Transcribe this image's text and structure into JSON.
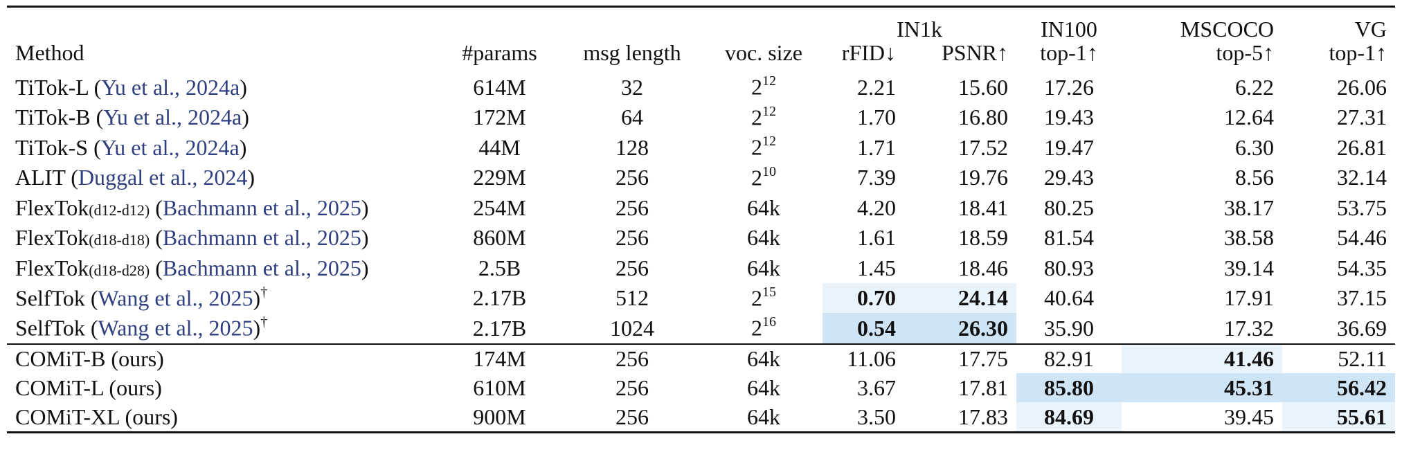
{
  "columns": {
    "group_in1k": "IN1k",
    "method": "Method",
    "params": "#params",
    "msg_length": "msg length",
    "voc_size": "voc. size",
    "rfid": "rFID↓",
    "psnr": "PSNR↑",
    "in100_top": "IN100",
    "in100_sub": "top-1↑",
    "mscoco_top": "MSCOCO",
    "mscoco_sub": "top-5↑",
    "vg_top": "VG",
    "vg_sub": "top-1↑"
  },
  "rows": [
    {
      "method": "TiTok-L",
      "variant": "",
      "cite": "Yu et al., 2024a",
      "dagger": "",
      "params": "614M",
      "msg": "32",
      "voc": "2",
      "voc_exp": "12",
      "rfid": "2.21",
      "psnr": "15.60",
      "in100": "17.26",
      "mscoco": "6.22",
      "vg": "26.06"
    },
    {
      "method": "TiTok-B",
      "variant": "",
      "cite": "Yu et al., 2024a",
      "dagger": "",
      "params": "172M",
      "msg": "64",
      "voc": "2",
      "voc_exp": "12",
      "rfid": "1.70",
      "psnr": "16.80",
      "in100": "19.43",
      "mscoco": "12.64",
      "vg": "27.31"
    },
    {
      "method": "TiTok-S",
      "variant": "",
      "cite": "Yu et al., 2024a",
      "dagger": "",
      "params": "44M",
      "msg": "128",
      "voc": "2",
      "voc_exp": "12",
      "rfid": "1.71",
      "psnr": "17.52",
      "in100": "19.47",
      "mscoco": "6.30",
      "vg": "26.81"
    },
    {
      "method": "ALIT",
      "variant": "",
      "cite": "Duggal et al., 2024",
      "dagger": "",
      "params": "229M",
      "msg": "256",
      "voc": "2",
      "voc_exp": "10",
      "rfid": "7.39",
      "psnr": "19.76",
      "in100": "29.43",
      "mscoco": "8.56",
      "vg": "32.14"
    },
    {
      "method": "FlexTok",
      "variant": "(d12-d12)",
      "cite": "Bachmann et al., 2025",
      "dagger": "",
      "params": "254M",
      "msg": "256",
      "voc": "64k",
      "voc_exp": "",
      "rfid": "4.20",
      "psnr": "18.41",
      "in100": "80.25",
      "mscoco": "38.17",
      "vg": "53.75"
    },
    {
      "method": "FlexTok",
      "variant": "(d18-d18)",
      "cite": "Bachmann et al., 2025",
      "dagger": "",
      "params": "860M",
      "msg": "256",
      "voc": "64k",
      "voc_exp": "",
      "rfid": "1.61",
      "psnr": "18.59",
      "in100": "81.54",
      "mscoco": "38.58",
      "vg": "54.46"
    },
    {
      "method": "FlexTok",
      "variant": "(d18-d28)",
      "cite": "Bachmann et al., 2025",
      "dagger": "",
      "params": "2.5B",
      "msg": "256",
      "voc": "64k",
      "voc_exp": "",
      "rfid": "1.45",
      "psnr": "18.46",
      "in100": "80.93",
      "mscoco": "39.14",
      "vg": "54.35"
    },
    {
      "method": "SelfTok",
      "variant": "",
      "cite": "Wang et al., 2025",
      "dagger": "†",
      "params": "2.17B",
      "msg": "512",
      "voc": "2",
      "voc_exp": "15",
      "rfid": "0.70",
      "psnr": "24.14",
      "in100": "40.64",
      "mscoco": "17.91",
      "vg": "37.15"
    },
    {
      "method": "SelfTok",
      "variant": "",
      "cite": "Wang et al., 2025",
      "dagger": "†",
      "params": "2.17B",
      "msg": "1024",
      "voc": "2",
      "voc_exp": "16",
      "rfid": "0.54",
      "psnr": "26.30",
      "in100": "35.90",
      "mscoco": "17.32",
      "vg": "36.69"
    }
  ],
  "ours": [
    {
      "method": "COMiT-B (ours)",
      "params": "174M",
      "msg": "256",
      "voc": "64k",
      "rfid": "11.06",
      "psnr": "17.75",
      "in100": "82.91",
      "mscoco": "41.46",
      "vg": "52.11"
    },
    {
      "method": "COMiT-L (ours)",
      "params": "610M",
      "msg": "256",
      "voc": "64k",
      "rfid": "3.67",
      "psnr": "17.81",
      "in100": "85.80",
      "mscoco": "45.31",
      "vg": "56.42"
    },
    {
      "method": "COMiT-XL (ours)",
      "params": "900M",
      "msg": "256",
      "voc": "64k",
      "rfid": "3.50",
      "psnr": "17.83",
      "in100": "84.69",
      "mscoco": "39.45",
      "vg": "55.61"
    }
  ],
  "highlight_colors": {
    "light": "#e9f3fb",
    "strong": "#cfe4f4"
  }
}
